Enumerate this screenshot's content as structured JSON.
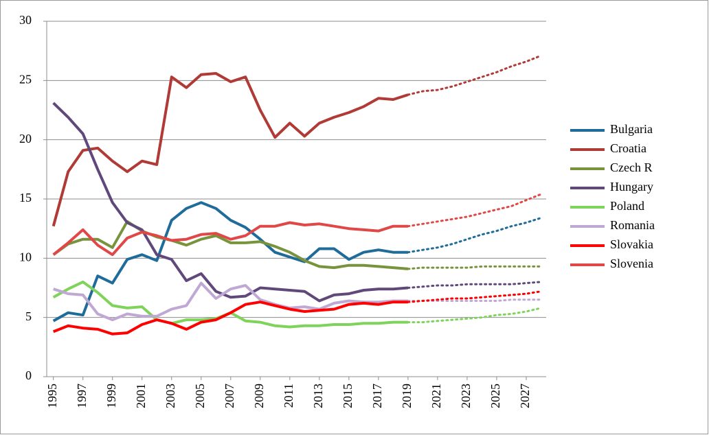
{
  "chart_data": {
    "type": "line",
    "x": [
      1995,
      1996,
      1997,
      1998,
      1999,
      2000,
      2001,
      2002,
      2003,
      2004,
      2005,
      2006,
      2007,
      2008,
      2009,
      2010,
      2011,
      2012,
      2013,
      2014,
      2015,
      2016,
      2017,
      2018,
      2019,
      2020,
      2021,
      2022,
      2023,
      2024,
      2025,
      2026,
      2027,
      2028
    ],
    "projection_start": 2019,
    "xlim": [
      1994.55,
      2028.35
    ],
    "xticks": [
      1995,
      1997,
      1999,
      2001,
      2003,
      2005,
      2007,
      2009,
      2011,
      2013,
      2015,
      2017,
      2019,
      2021,
      2023,
      2025,
      2027
    ],
    "ylim": [
      0,
      30
    ],
    "yticks": [
      0,
      5,
      10,
      15,
      20,
      25,
      30
    ],
    "grid": true,
    "legend": "right",
    "series": [
      {
        "name": "Bulgaria",
        "color": "#1f6b9a",
        "values": [
          4.7,
          5.4,
          5.2,
          8.5,
          7.9,
          9.9,
          10.3,
          9.8,
          13.2,
          14.2,
          14.7,
          14.2,
          13.2,
          12.6,
          11.6,
          10.5,
          10.1,
          9.7,
          10.8,
          10.8,
          9.9,
          10.5,
          10.7,
          10.5,
          10.5,
          10.7,
          10.9,
          11.2,
          11.6,
          12.0,
          12.3,
          12.7,
          13.0,
          13.4
        ]
      },
      {
        "name": "Croatia",
        "color": "#b03a35",
        "values": [
          12.7,
          17.3,
          19.1,
          19.3,
          18.2,
          17.3,
          18.2,
          17.9,
          25.3,
          24.4,
          25.5,
          25.6,
          24.9,
          25.3,
          22.5,
          20.2,
          21.4,
          20.3,
          21.4,
          21.9,
          22.3,
          22.8,
          23.5,
          23.4,
          23.8,
          24.1,
          24.2,
          24.5,
          24.9,
          25.3,
          25.7,
          26.2,
          26.6,
          27.1
        ]
      },
      {
        "name": "Czech R",
        "color": "#77933c",
        "values": [
          10.3,
          11.2,
          11.6,
          11.6,
          10.9,
          13.1,
          12.3,
          11.8,
          11.5,
          11.1,
          11.6,
          11.9,
          11.3,
          11.3,
          11.4,
          11.0,
          10.5,
          9.8,
          9.3,
          9.2,
          9.4,
          9.4,
          9.3,
          9.2,
          9.1,
          9.2,
          9.2,
          9.2,
          9.2,
          9.3,
          9.3,
          9.3,
          9.3,
          9.3
        ]
      },
      {
        "name": "Hungary",
        "color": "#60497a",
        "values": [
          23.1,
          21.9,
          20.5,
          17.5,
          14.7,
          13.0,
          12.4,
          10.3,
          9.9,
          8.1,
          8.7,
          7.2,
          6.7,
          6.8,
          7.5,
          7.4,
          7.3,
          7.2,
          6.4,
          6.9,
          7.0,
          7.3,
          7.4,
          7.4,
          7.5,
          7.6,
          7.7,
          7.7,
          7.8,
          7.8,
          7.8,
          7.8,
          7.9,
          8.0
        ]
      },
      {
        "name": "Poland",
        "color": "#7fd35a",
        "values": [
          6.7,
          7.4,
          8.0,
          7.1,
          6.0,
          5.8,
          5.9,
          4.8,
          4.5,
          4.8,
          4.8,
          4.9,
          5.4,
          4.7,
          4.6,
          4.3,
          4.2,
          4.3,
          4.3,
          4.4,
          4.4,
          4.5,
          4.5,
          4.6,
          4.6,
          4.6,
          4.7,
          4.8,
          4.9,
          5.0,
          5.2,
          5.3,
          5.5,
          5.8
        ]
      },
      {
        "name": "Romania",
        "color": "#c0a8d4",
        "values": [
          7.4,
          7.0,
          6.9,
          5.3,
          4.8,
          5.3,
          5.1,
          5.1,
          5.7,
          6.0,
          7.9,
          6.6,
          7.4,
          7.7,
          6.5,
          6.1,
          5.8,
          5.9,
          5.7,
          6.2,
          6.4,
          6.3,
          6.3,
          6.4,
          6.4,
          6.4,
          6.4,
          6.4,
          6.4,
          6.4,
          6.4,
          6.5,
          6.5,
          6.5
        ]
      },
      {
        "name": "Slovakia",
        "color": "#ff0000",
        "values": [
          3.8,
          4.3,
          4.1,
          4.0,
          3.6,
          3.7,
          4.4,
          4.8,
          4.5,
          4.0,
          4.6,
          4.8,
          5.4,
          6.1,
          6.3,
          6.0,
          5.7,
          5.5,
          5.6,
          5.7,
          6.1,
          6.2,
          6.1,
          6.3,
          6.3,
          6.4,
          6.5,
          6.6,
          6.6,
          6.7,
          6.8,
          6.9,
          7.0,
          7.2
        ]
      },
      {
        "name": "Slovenia",
        "color": "#e04848",
        "values": [
          10.3,
          11.3,
          12.4,
          11.1,
          10.3,
          11.7,
          12.2,
          11.9,
          11.5,
          11.6,
          12.0,
          12.1,
          11.6,
          11.9,
          12.7,
          12.7,
          13.0,
          12.8,
          12.9,
          12.7,
          12.5,
          12.4,
          12.3,
          12.7,
          12.7,
          12.9,
          13.1,
          13.3,
          13.5,
          13.8,
          14.1,
          14.4,
          14.9,
          15.4
        ]
      }
    ]
  }
}
